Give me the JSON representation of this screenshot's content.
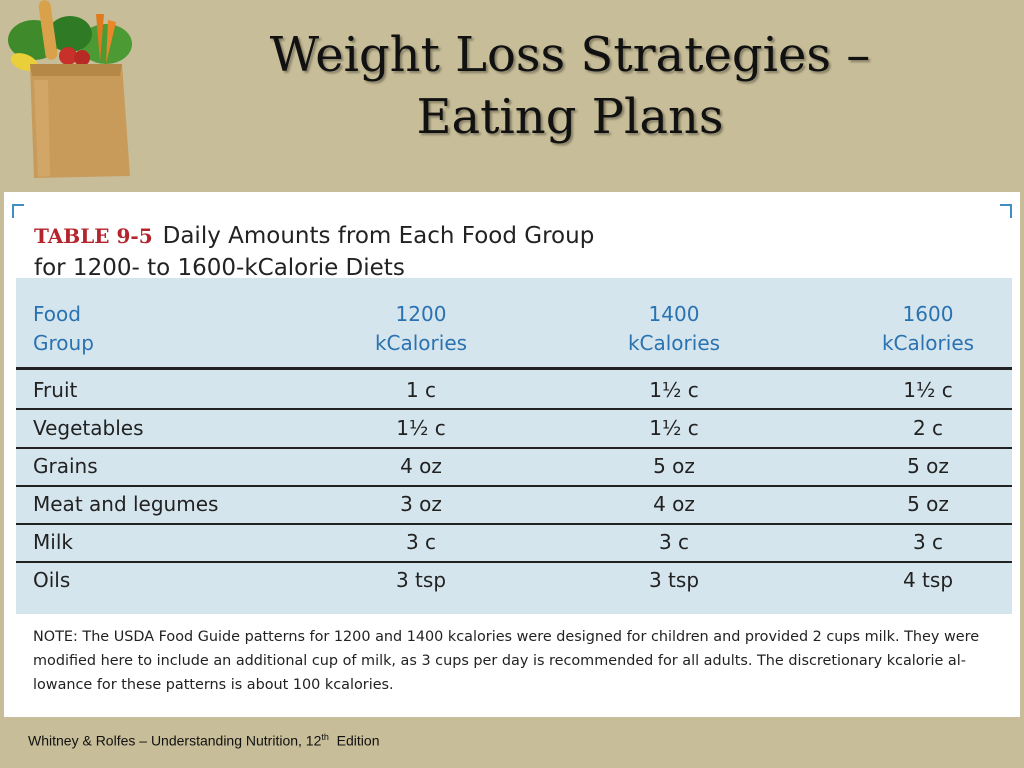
{
  "slide": {
    "title_line1": "Weight Loss Strategies –",
    "title_line2": "Eating Plans"
  },
  "table": {
    "number": "TABLE 9-5",
    "title_line1": "Daily Amounts from Each Food Group",
    "title_line2": "for 1200- to 1600-kCalorie Diets",
    "headers": [
      {
        "line1": "Food",
        "line2": "Group"
      },
      {
        "line1": "1200",
        "line2": "kCalories"
      },
      {
        "line1": "1400",
        "line2": "kCalories"
      },
      {
        "line1": "1600",
        "line2": "kCalories"
      }
    ],
    "rows": [
      [
        "Fruit",
        "1 c",
        "1½ c",
        "1½ c"
      ],
      [
        "Vegetables",
        "1½ c",
        "1½ c",
        "2 c"
      ],
      [
        "Grains",
        "4 oz",
        "5 oz",
        "5 oz"
      ],
      [
        "Meat and legumes",
        "3 oz",
        "4 oz",
        "5 oz"
      ],
      [
        "Milk",
        "3 c",
        "3 c",
        "3 c"
      ],
      [
        "Oils",
        "3 tsp",
        "3 tsp",
        "4 tsp"
      ]
    ],
    "note_line1": "NOTE: The USDA Food Guide patterns for 1200 and 1400 kcalories were designed for children and provided 2 cups milk. They were",
    "note_line2": "modified here to include an additional cup of milk, as 3 cups per day is recommended for all adults. The discretionary kcalorie al-",
    "note_line3": "lowance for these patterns is about 100 kcalories."
  },
  "footer": {
    "text": "Whitney  & Rolfes – Understanding Nutrition, 12",
    "superscript": "th",
    "edition": "  Edition"
  },
  "colors": {
    "background": "#c7bd98",
    "table_number": "#b4242d",
    "header_text": "#2a72b0",
    "table_tint": "#d5e5ee"
  },
  "icons": [
    "grocery-bag-icon"
  ]
}
